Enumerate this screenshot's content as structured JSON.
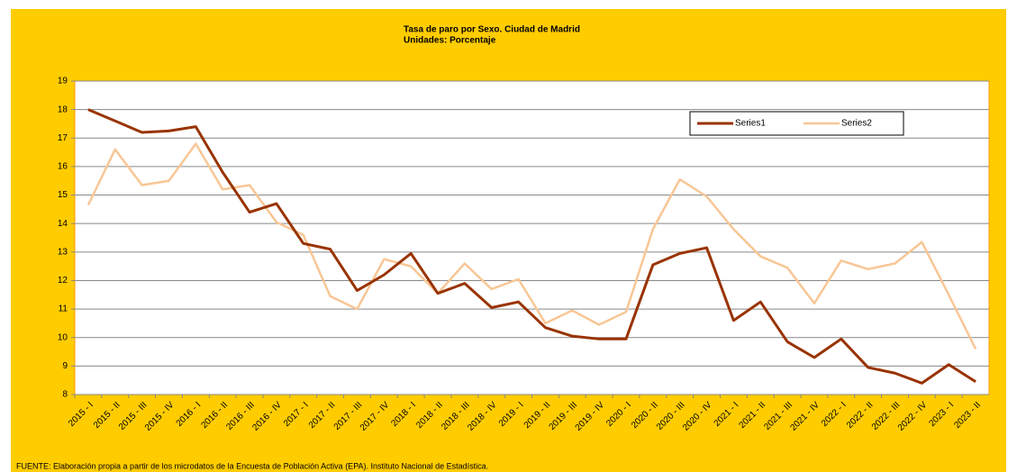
{
  "chart_data": {
    "type": "line",
    "title": "Tasa de paro por Sexo. Ciudad de Madrid",
    "subtitle": "Unidades: Porcentaje",
    "categories": [
      "2015 - I",
      "2015 - II",
      "2015 - III",
      "2015 - IV",
      "2016 - I",
      "2016 - II",
      "2016 - III",
      "2016 - IV",
      "2017 - I",
      "2017 - II",
      "2017 - III",
      "2017 - IV",
      "2018 - I",
      "2018 - II",
      "2018 - III",
      "2018 - IV",
      "2019 - I",
      "2019 - II",
      "2019 - III",
      "2019 - IV",
      "2020 - I",
      "2020 - II",
      "2020 - III",
      "2020 - IV",
      "2021 - I",
      "2021 - II",
      "2021 - III",
      "2021 - IV",
      "2022 - I",
      "2022 - II",
      "2022 - III",
      "2022 - IV",
      "2023 - I",
      "2023 - II"
    ],
    "series": [
      {
        "name": "Series1",
        "color": "#993300",
        "values": [
          18.0,
          17.6,
          17.2,
          17.25,
          17.4,
          15.8,
          14.4,
          14.7,
          13.3,
          13.1,
          11.65,
          12.2,
          12.95,
          11.55,
          11.9,
          11.05,
          11.25,
          10.35,
          10.05,
          9.95,
          9.95,
          12.55,
          12.95,
          13.15,
          10.6,
          11.25,
          9.85,
          9.3,
          9.95,
          8.95,
          8.75,
          8.4,
          9.05,
          8.45
        ]
      },
      {
        "name": "Series2",
        "color": "#F8C695",
        "values": [
          14.65,
          16.6,
          15.35,
          15.5,
          16.8,
          15.2,
          15.35,
          14.05,
          13.6,
          11.45,
          11.0,
          12.75,
          12.5,
          11.55,
          12.6,
          11.7,
          12.05,
          10.5,
          10.95,
          10.45,
          10.9,
          13.8,
          15.55,
          14.95,
          13.8,
          12.85,
          12.45,
          11.2,
          12.7,
          12.4,
          12.6,
          13.35,
          11.5,
          9.6
        ]
      }
    ],
    "ylim": [
      8,
      19
    ],
    "yticks": [
      8,
      9,
      10,
      11,
      12,
      13,
      14,
      15,
      16,
      17,
      18,
      19
    ],
    "grid": true,
    "legend": "upper right",
    "source": "FUENTE: Elaboración propia a partir de los microdatos de la Encuesta de Población Activa (EPA). Instituto Nacional de Estadística."
  }
}
